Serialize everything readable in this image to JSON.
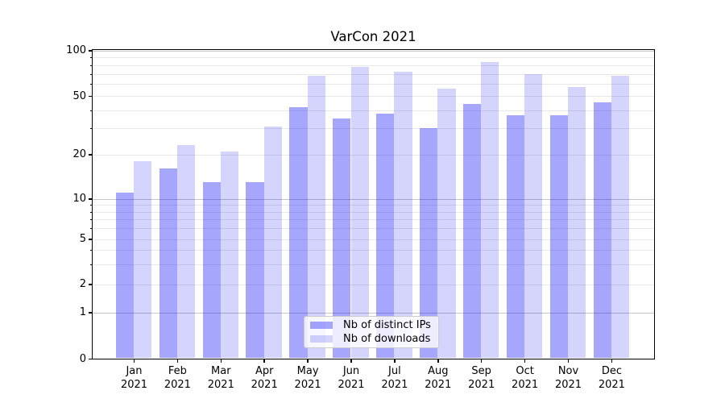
{
  "title": "VarCon 2021",
  "chart_data": {
    "type": "bar",
    "title": "VarCon 2021",
    "categories": [
      "Jan 2021",
      "Feb 2021",
      "Mar 2021",
      "Apr 2021",
      "May 2021",
      "Jun 2021",
      "Jul 2021",
      "Aug 2021",
      "Sep 2021",
      "Oct 2021",
      "Nov 2021",
      "Dec 2021"
    ],
    "series": [
      {
        "name": "Nb of distinct IPs",
        "color": "rgba(0,0,245,0.35)",
        "values": [
          11,
          16,
          13,
          13,
          42,
          35,
          38,
          30,
          44,
          37,
          37,
          45
        ]
      },
      {
        "name": "Nb of downloads",
        "color": "rgba(0,0,245,0.17)",
        "values": [
          18,
          23,
          21,
          31,
          68,
          78,
          72,
          56,
          84,
          70,
          57,
          68
        ]
      }
    ],
    "yscale": "symlog",
    "ylim": [
      0,
      100
    ],
    "yticks": [
      0,
      1,
      2,
      5,
      10,
      20,
      50,
      100
    ],
    "yticklabels": [
      "0",
      "1",
      "2",
      "5",
      "10",
      "20",
      "50",
      "100"
    ],
    "yticks_major_grid": [
      1,
      10,
      100
    ],
    "yticks_minor_grid": [
      2,
      3,
      4,
      5,
      6,
      7,
      8,
      9,
      20,
      30,
      40,
      50,
      60,
      70,
      80,
      90
    ],
    "xlabel": "",
    "ylabel": "",
    "grid": "both",
    "legend_position": "inside-bottom-center",
    "colors": {
      "spine": "#000000",
      "grid_major": "#c6c6c6",
      "grid_minor": "#e9e9e9"
    }
  }
}
